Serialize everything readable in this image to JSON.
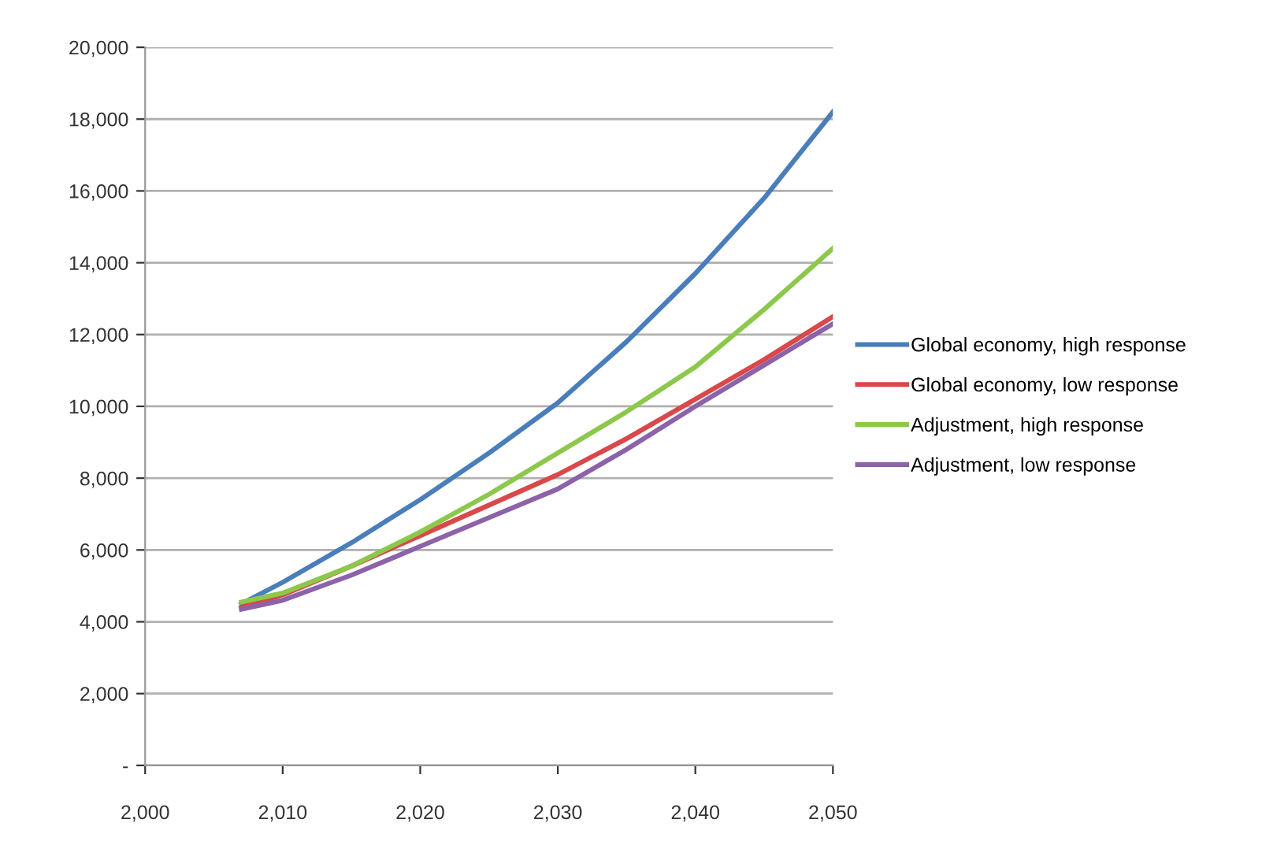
{
  "chart_data": {
    "type": "line",
    "x": [
      2007,
      2010,
      2015,
      2020,
      2025,
      2030,
      2035,
      2040,
      2045,
      2050
    ],
    "series": [
      {
        "name": "Global economy, high response",
        "color": "#4a7ebb",
        "values": [
          4500,
          5100,
          6200,
          7400,
          8700,
          10100,
          11800,
          13700,
          15800,
          18200
        ]
      },
      {
        "name": "Global economy, low response",
        "color": "#d9484a",
        "values": [
          4400,
          4750,
          5550,
          6400,
          7250,
          8100,
          9100,
          10200,
          11300,
          12500
        ]
      },
      {
        "name": "Adjustment, high response",
        "color": "#8cc84b",
        "values": [
          4550,
          4800,
          5550,
          6500,
          7550,
          8700,
          9850,
          11100,
          12700,
          14400
        ]
      },
      {
        "name": "Adjustment, low response",
        "color": "#8c62a8",
        "values": [
          4350,
          4600,
          5300,
          6100,
          6900,
          7700,
          8800,
          10000,
          11150,
          12300
        ]
      }
    ],
    "xlim": [
      2000,
      2050
    ],
    "xticks": [
      {
        "value": 2000,
        "label": "2,000"
      },
      {
        "value": 2010,
        "label": "2,010"
      },
      {
        "value": 2020,
        "label": "2,020"
      },
      {
        "value": 2030,
        "label": "2,030"
      },
      {
        "value": 2040,
        "label": "2,040"
      },
      {
        "value": 2050,
        "label": "2,050"
      }
    ],
    "ylim": [
      0,
      20000
    ],
    "yticks": [
      {
        "value": 0,
        "label": "-"
      },
      {
        "value": 2000,
        "label": "2,000"
      },
      {
        "value": 4000,
        "label": "4,000"
      },
      {
        "value": 6000,
        "label": "6,000"
      },
      {
        "value": 8000,
        "label": "8,000"
      },
      {
        "value": 10000,
        "label": "10,000"
      },
      {
        "value": 12000,
        "label": "12,000"
      },
      {
        "value": 14000,
        "label": "14,000"
      },
      {
        "value": 16000,
        "label": "16,000"
      },
      {
        "value": 18000,
        "label": "18,000"
      },
      {
        "value": 20000,
        "label": "20,000"
      }
    ],
    "grid": "y",
    "legend": "right",
    "marker": "none",
    "line_style": "solid"
  }
}
